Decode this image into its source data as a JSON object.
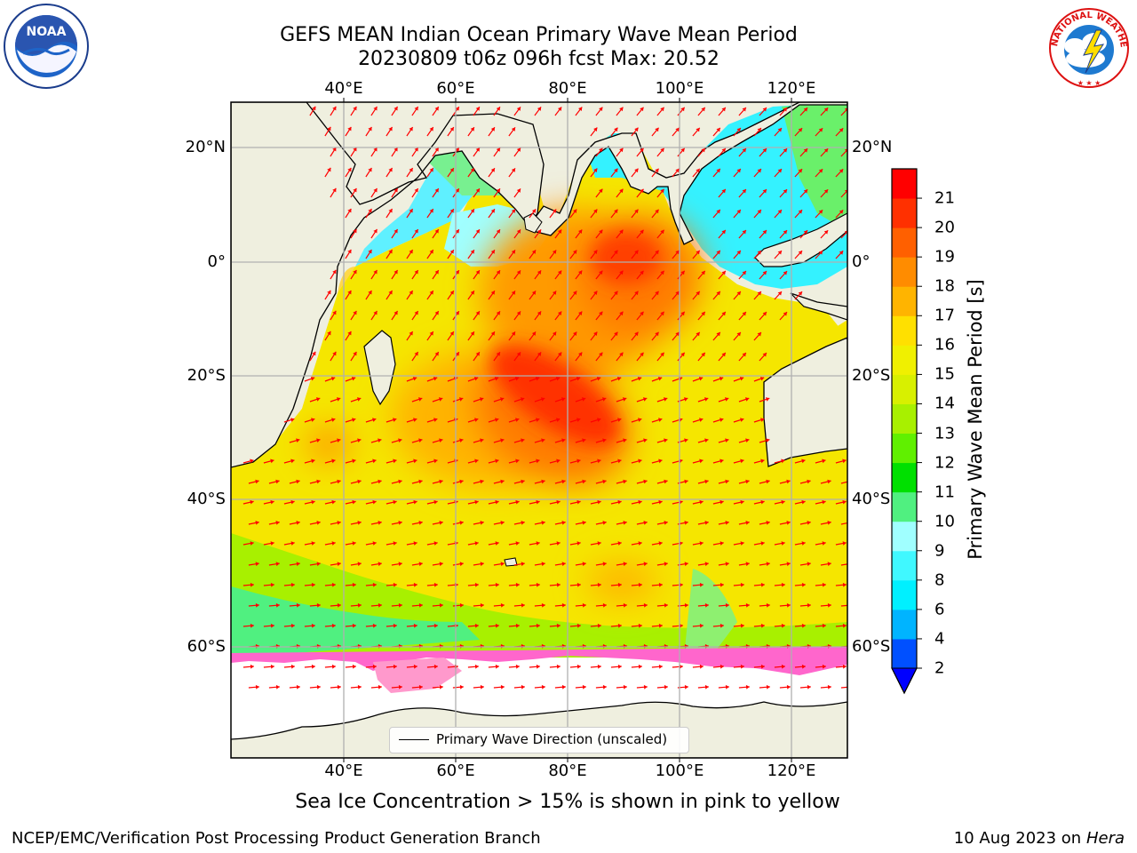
{
  "title": {
    "line1": "GEFS MEAN Indian Ocean Primary Wave Mean Period",
    "line2": "20230809 t06z 096h fcst   Max: 20.52"
  },
  "axes": {
    "lon_ticks": [
      "40°E",
      "60°E",
      "80°E",
      "100°E",
      "120°E"
    ],
    "lat_ticks": [
      "20°N",
      "0°",
      "20°S",
      "40°S",
      "60°S"
    ]
  },
  "legend": {
    "label": "Primary Wave Direction (unscaled)"
  },
  "colorbar": {
    "label": "Primary Wave Mean Period [s]",
    "ticks": [
      "2",
      "4",
      "6",
      "8",
      "9",
      "10",
      "11",
      "12",
      "13",
      "14",
      "15",
      "16",
      "17",
      "18",
      "19",
      "20",
      "21"
    ],
    "colors": [
      "#0050ff",
      "#00b4ff",
      "#00f0ff",
      "#40f8ff",
      "#a0ffff",
      "#50f080",
      "#00e000",
      "#60f000",
      "#a8f000",
      "#d8f000",
      "#f0f000",
      "#ffe000",
      "#ffb400",
      "#ff8c00",
      "#ff6000",
      "#ff3000",
      "#ff0000"
    ]
  },
  "subcaption": "Sea Ice Concentration > 15% is shown in pink to yellow",
  "footer": {
    "left": "NCEP/EMC/Verification Post Processing Product Generation Branch",
    "date": "10 Aug 2023 on",
    "host": "Hera"
  },
  "logos": {
    "left": "NOAA",
    "right": "NATIONAL WEATHER SERVICE"
  },
  "colors": {
    "land": "#efefdf",
    "arrow": "#ff0000",
    "grid": "#b0b0b0"
  }
}
